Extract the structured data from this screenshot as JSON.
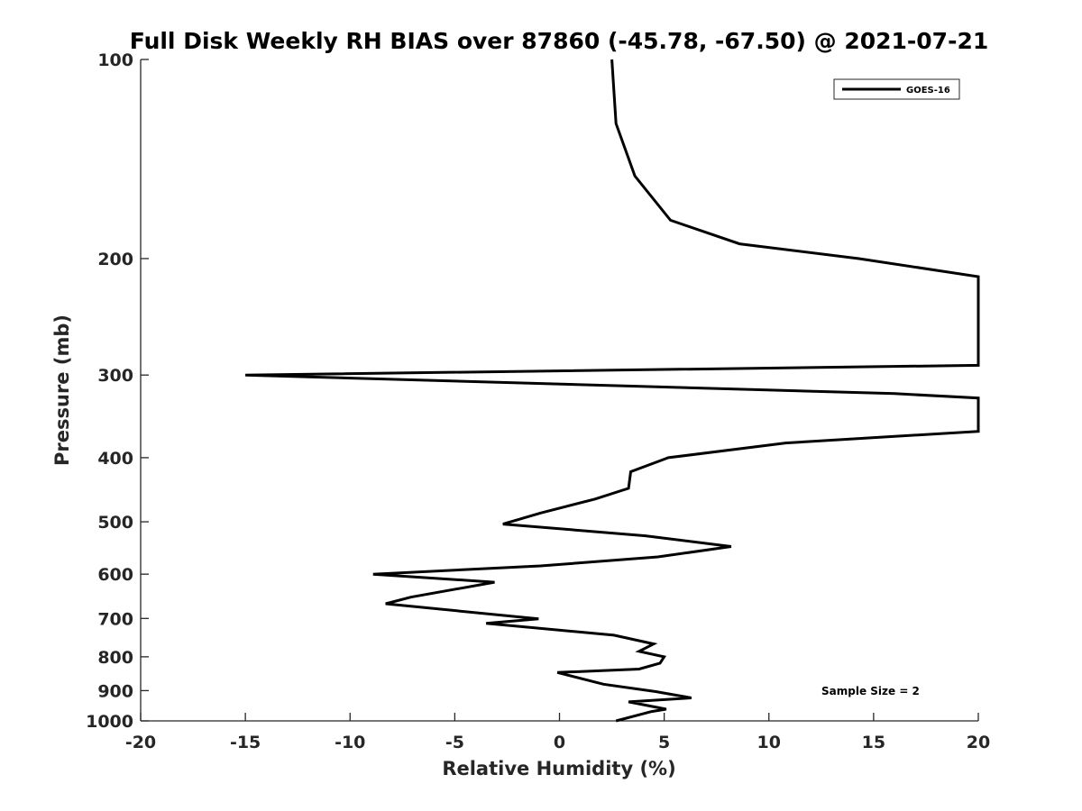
{
  "chart_data": {
    "type": "line",
    "title": "Full Disk Weekly RH BIAS over 87860 (-45.78, -67.50) @ 2021-07-21",
    "xlabel": "Relative Humidity (%)",
    "ylabel": "Pressure (mb)",
    "xlim": [
      -20,
      20
    ],
    "ylim": [
      100,
      1000
    ],
    "yscale": "log",
    "xticks": [
      -20,
      -15,
      -10,
      -5,
      0,
      5,
      10,
      15,
      20
    ],
    "xtick_labels": [
      "-20",
      "-15",
      "-10",
      "-5",
      "0",
      "5",
      "10",
      "15",
      "20"
    ],
    "yticks": [
      100,
      200,
      300,
      400,
      500,
      600,
      700,
      800,
      900,
      1000
    ],
    "ytick_labels": [
      "100",
      "200",
      "300",
      "400",
      "500",
      "600",
      "700",
      "800",
      "900",
      "1000"
    ],
    "grid": false,
    "legend": {
      "position": "top-right",
      "entries": [
        "GOES-16"
      ]
    },
    "annotation": "Sample Size = 2",
    "series": [
      {
        "name": "GOES-16",
        "color": "#000000",
        "points": [
          [
            2.5,
            100
          ],
          [
            2.7,
            125
          ],
          [
            3.6,
            150
          ],
          [
            5.3,
            175
          ],
          [
            8.6,
            190
          ],
          [
            14.3,
            200
          ],
          [
            20.0,
            213
          ],
          [
            20.0,
            290
          ],
          [
            -15.0,
            300
          ],
          [
            16.0,
            320
          ],
          [
            20.0,
            325
          ],
          [
            20.0,
            365
          ],
          [
            10.8,
            380
          ],
          [
            5.2,
            400
          ],
          [
            3.4,
            420
          ],
          [
            3.3,
            445
          ],
          [
            1.7,
            462
          ],
          [
            -0.9,
            485
          ],
          [
            -2.7,
            504
          ],
          [
            4.1,
            525
          ],
          [
            8.2,
            545
          ],
          [
            4.7,
            565
          ],
          [
            -0.9,
            583
          ],
          [
            -8.9,
            600
          ],
          [
            -3.1,
            617
          ],
          [
            -7.1,
            650
          ],
          [
            -8.3,
            665
          ],
          [
            -1.0,
            701
          ],
          [
            -3.5,
            712
          ],
          [
            2.6,
            742
          ],
          [
            4.5,
            765
          ],
          [
            3.8,
            785
          ],
          [
            5.0,
            800
          ],
          [
            4.8,
            818
          ],
          [
            3.8,
            835
          ],
          [
            -0.1,
            845
          ],
          [
            2.1,
            880
          ],
          [
            4.6,
            903
          ],
          [
            6.3,
            923
          ],
          [
            3.3,
            936
          ],
          [
            5.1,
            960
          ],
          [
            4.4,
            968
          ],
          [
            2.7,
            1000
          ]
        ]
      }
    ]
  }
}
